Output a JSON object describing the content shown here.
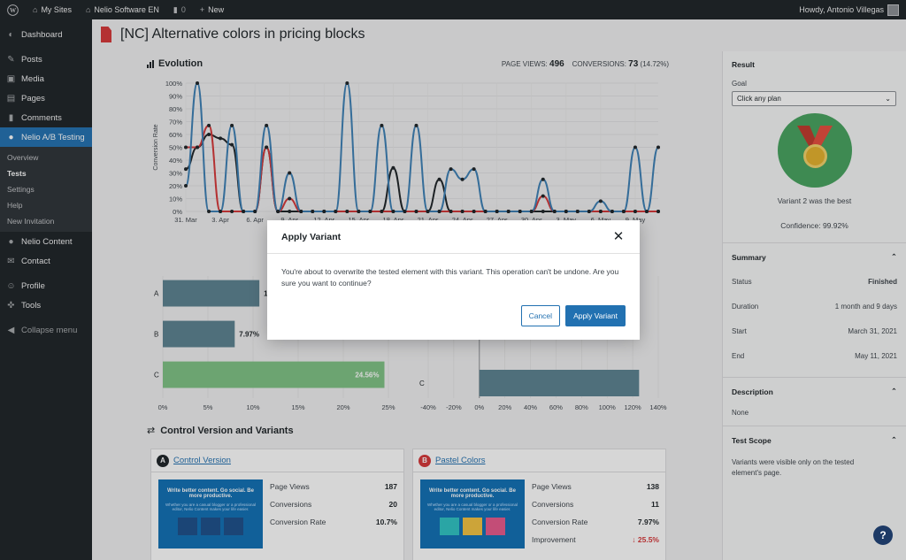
{
  "adminbar": {
    "sites": "My Sites",
    "site_name": "Nelio Software EN",
    "comments_count": "0",
    "new_label": "New",
    "howdy": "Howdy, Antonio Villegas"
  },
  "sidebar": {
    "items": [
      {
        "label": "Dashboard",
        "icon": "dashboard-icon"
      },
      {
        "label": "Posts",
        "icon": "pin-icon"
      },
      {
        "label": "Media",
        "icon": "media-icon"
      },
      {
        "label": "Pages",
        "icon": "pages-icon"
      },
      {
        "label": "Comments",
        "icon": "comment-icon"
      },
      {
        "label": "Nelio A/B Testing",
        "icon": "nelio-icon"
      }
    ],
    "submenu": [
      "Overview",
      "Tests",
      "Settings",
      "Help",
      "New Invitation"
    ],
    "items2": [
      {
        "label": "Nelio Content",
        "icon": "nelio-content-icon"
      },
      {
        "label": "Contact",
        "icon": "mail-icon"
      },
      {
        "label": "Profile",
        "icon": "user-icon"
      },
      {
        "label": "Tools",
        "icon": "wrench-icon"
      },
      {
        "label": "Collapse menu",
        "icon": "collapse-icon"
      }
    ]
  },
  "page": {
    "title": "[NC] Alternative colors in pricing blocks"
  },
  "evolution": {
    "heading": "Evolution",
    "page_views_label": "PAGE VIEWS:",
    "page_views": "496",
    "conversions_label": "CONVERSIONS:",
    "conversions": "73",
    "conversions_pct": "(14.72%)"
  },
  "chart_data": [
    {
      "type": "line",
      "ylabel": "Conversion Rate",
      "ylim": [
        0,
        100
      ],
      "yticks": [
        "0%",
        "10%",
        "20%",
        "30%",
        "40%",
        "50%",
        "60%",
        "70%",
        "80%",
        "90%",
        "100%"
      ],
      "xticks": [
        "31. Mar",
        "3. Apr",
        "6. Apr",
        "9. Apr",
        "12. Apr",
        "15. Apr",
        "18. Apr",
        "21. Apr",
        "24. Apr",
        "27. Apr",
        "30. Apr",
        "3. May",
        "6. May",
        "9. May"
      ],
      "x_count": 42,
      "series": [
        {
          "name": "Variant A (Control)",
          "color": "#1d2327",
          "values": [
            33,
            50,
            60,
            57,
            52,
            0,
            0,
            50,
            0,
            0,
            0,
            0,
            0,
            0,
            0,
            0,
            0,
            0,
            34,
            0,
            0,
            0,
            25,
            0,
            0,
            0,
            0,
            0,
            0,
            0,
            0,
            0,
            0,
            0,
            0,
            0,
            0,
            0,
            0,
            0,
            0,
            0
          ]
        },
        {
          "name": "Variant B",
          "color": "#d63638",
          "values": [
            50,
            50,
            67,
            0,
            0,
            0,
            0,
            50,
            0,
            10,
            0,
            0,
            0,
            0,
            0,
            0,
            0,
            0,
            0,
            0,
            0,
            0,
            0,
            0,
            0,
            0,
            0,
            0,
            0,
            0,
            0,
            12,
            0,
            0,
            0,
            0,
            0,
            0,
            0,
            0,
            0,
            0
          ]
        },
        {
          "name": "Variant C",
          "color": "#3b7fb5",
          "values": [
            20,
            100,
            0,
            0,
            67,
            0,
            0,
            67,
            0,
            30,
            0,
            0,
            0,
            0,
            100,
            0,
            0,
            67,
            0,
            0,
            67,
            0,
            0,
            33,
            25,
            33,
            0,
            0,
            0,
            0,
            0,
            25,
            0,
            0,
            0,
            0,
            8,
            0,
            0,
            50,
            0,
            50
          ]
        }
      ]
    },
    {
      "type": "bar",
      "title": "Conversion Rate",
      "categories": [
        "A",
        "B",
        "C"
      ],
      "values": [
        10.7,
        7.97,
        24.56
      ],
      "value_labels": [
        "10.7%",
        "7.97%",
        "24.56%"
      ],
      "colors": [
        "#5b8291",
        "#5b8291",
        "#7ec384"
      ],
      "xticks": [
        "0%",
        "5%",
        "10%",
        "15%",
        "20%",
        "25%"
      ],
      "xlim": [
        0,
        25
      ]
    },
    {
      "type": "bar",
      "categories": [
        "C"
      ],
      "values": [
        125
      ],
      "colors": [
        "#5b8291"
      ],
      "xticks": [
        "-40%",
        "-20%",
        "0%",
        "20%",
        "40%",
        "60%",
        "80%",
        "100%",
        "120%",
        "140%"
      ],
      "xlim": [
        -40,
        140
      ]
    }
  ],
  "variants_section": {
    "heading": "Control Version and Variants",
    "cards": [
      {
        "letter": "A",
        "color": "#1d2327",
        "title": "Control Version",
        "thumb_headline": "Write better content. Go social. Be more productive.",
        "thumb_sub": "Whether you are a casual blogger or a professional editor, Nelio Content makes your life easier.",
        "stats": [
          {
            "label": "Page Views",
            "value": "187"
          },
          {
            "label": "Conversions",
            "value": "20"
          },
          {
            "label": "Conversion Rate",
            "value": "10.7%"
          }
        ]
      },
      {
        "letter": "B",
        "color": "#d63638",
        "title": "Pastel Colors",
        "thumb_headline": "Write better content. Go social. Be more productive.",
        "thumb_sub": "Whether you are a casual blogger or a professional editor, Nelio Content makes your life easier.",
        "stats": [
          {
            "label": "Page Views",
            "value": "138"
          },
          {
            "label": "Conversions",
            "value": "11"
          },
          {
            "label": "Conversion Rate",
            "value": "7.97%"
          },
          {
            "label": "Improvement",
            "value": "25.5%"
          }
        ]
      }
    ]
  },
  "result": {
    "heading": "Result",
    "goal_label": "Goal",
    "goal_value": "Click any plan",
    "best": "Variant 2 was the best",
    "confidence": "Confidence: 99.92%"
  },
  "summary": {
    "heading": "Summary",
    "rows": [
      {
        "label": "Status",
        "value": "Finished"
      },
      {
        "label": "Duration",
        "value": "1 month and 9 days"
      },
      {
        "label": "Start",
        "value": "March 31, 2021"
      },
      {
        "label": "End",
        "value": "May 11, 2021"
      }
    ]
  },
  "description": {
    "heading": "Description",
    "text": "None"
  },
  "scope": {
    "heading": "Test Scope",
    "text": "Variants were visible only on the tested element's page."
  },
  "modal": {
    "title": "Apply Variant",
    "body": "You're about to overwrite the tested element with this variant. This operation can't be undone. Are you sure you want to continue?",
    "cancel": "Cancel",
    "apply": "Apply Variant"
  },
  "help": "?"
}
